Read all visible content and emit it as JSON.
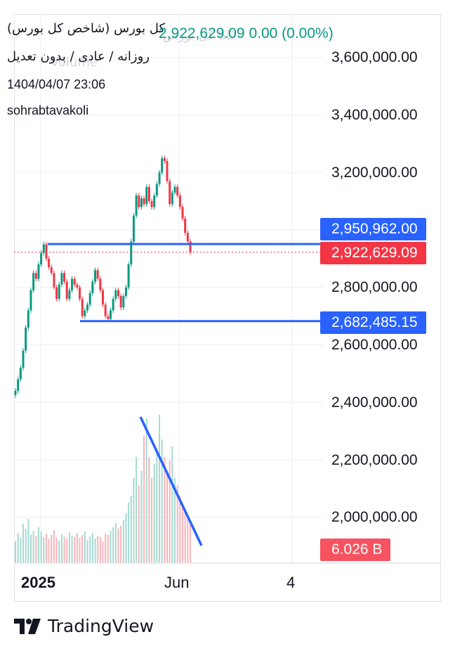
{
  "header": {
    "title": "کل بورس (شاخص کل بورس)",
    "interval": "روزانه / عادی / بدون تعدیل",
    "datetime": "1404/04/07 23:06",
    "author": "sohrabtavakoli",
    "ghost_name": "کل بورس SD",
    "ghost_volume": "Volume",
    "price_info": "2,922,629.09  0.00 (0.00%)"
  },
  "tags": {
    "upper_line": "2,950,962.00",
    "last_price": "2,922,629.09",
    "lower_line": "2,682,485.15",
    "volume": "6.026 B"
  },
  "colors": {
    "up": "#089981",
    "down": "#f23645",
    "volume_up": "#a5dad0",
    "volume_down": "#f7b4b9",
    "drawing": "#2962ff",
    "last_price": "#f23645",
    "grid": "#f0f3fa"
  },
  "branding": {
    "logo_text": "TradingView",
    "logo_icon": "tradingview-logo-icon"
  },
  "chart_data": {
    "type": "candlestick",
    "y_axis": {
      "ticks": [
        3600000,
        3400000,
        3200000,
        3000000,
        2800000,
        2600000,
        2400000,
        2200000,
        2000000
      ],
      "tick_labels": [
        "3,600,000.00",
        "3,400,000.00",
        "3,200,000.00",
        "3,000,000.00",
        "2,800,000.00",
        "2,600,000.00",
        "2,400,000.00",
        "2,200,000.00",
        "2,000,000.00"
      ],
      "range": [
        1850000,
        3720000
      ]
    },
    "x_axis": {
      "tick_labels": [
        "2025",
        "Jun",
        "4"
      ]
    },
    "last_close": 2922629.09,
    "horizontal_lines": [
      2950962.0,
      2682485.15
    ],
    "trendline_note": "volume downtrend line",
    "volume_last": "6.026 B",
    "close_series": [
      2440000,
      2480000,
      2520000,
      2580000,
      2660000,
      2720000,
      2790000,
      2850000,
      2830000,
      2880000,
      2920000,
      2950000,
      2900000,
      2870000,
      2850000,
      2800000,
      2760000,
      2810000,
      2850000,
      2820000,
      2760000,
      2790000,
      2830000,
      2810000,
      2800000,
      2760000,
      2700000,
      2720000,
      2740000,
      2780000,
      2820000,
      2860000,
      2830000,
      2790000,
      2740000,
      2700000,
      2690000,
      2720000,
      2760000,
      2790000,
      2770000,
      2730000,
      2770000,
      2800000,
      2880000,
      2960000,
      3050000,
      3120000,
      3080000,
      3110000,
      3090000,
      3150000,
      3100000,
      3080000,
      3120000,
      3160000,
      3200000,
      3250000,
      3240000,
      3170000,
      3090000,
      3130000,
      3150000,
      3120000,
      3080000,
      3040000,
      2990000,
      2960000,
      2922629.09
    ],
    "volume_series": [
      30,
      42,
      35,
      55,
      48,
      62,
      40,
      45,
      38,
      50,
      44,
      36,
      41,
      33,
      39,
      46,
      35,
      31,
      40,
      37,
      34,
      43,
      38,
      36,
      41,
      35,
      39,
      44,
      32,
      37,
      42,
      34,
      38,
      36,
      30,
      41,
      39,
      45,
      50,
      56,
      48,
      52,
      60,
      70,
      85,
      95,
      120,
      150,
      110,
      130,
      180,
      205,
      150,
      120,
      140,
      160,
      210,
      175,
      150,
      130,
      145,
      165,
      120,
      110,
      95,
      85,
      75,
      62,
      55
    ]
  }
}
